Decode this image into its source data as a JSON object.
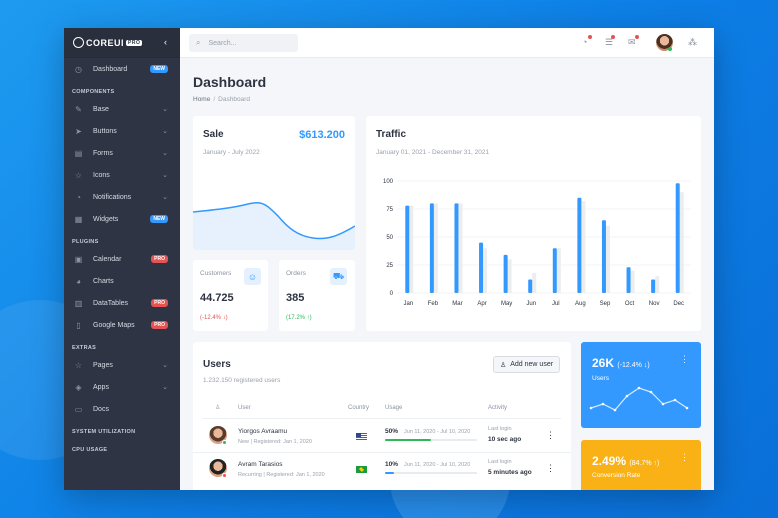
{
  "app": {
    "logo": "COREUI",
    "logo_badge": "PRO"
  },
  "sidebar": {
    "items": [
      {
        "label": "Dashboard",
        "icon": "speedometer-icon",
        "badge": "NEW",
        "badge_type": "new"
      },
      {
        "section": "COMPONENTS"
      },
      {
        "label": "Base",
        "icon": "puzzle-icon",
        "caret": true
      },
      {
        "label": "Buttons",
        "icon": "cursor-icon",
        "caret": true
      },
      {
        "label": "Forms",
        "icon": "notes-icon",
        "caret": true
      },
      {
        "label": "Icons",
        "icon": "star-icon",
        "caret": true
      },
      {
        "label": "Notifications",
        "icon": "bell-icon",
        "caret": true
      },
      {
        "label": "Widgets",
        "icon": "calculator-icon",
        "badge": "NEW",
        "badge_type": "new"
      },
      {
        "section": "PLUGINS"
      },
      {
        "label": "Calendar",
        "icon": "calendar-icon",
        "badge": "PRO",
        "badge_type": "pro"
      },
      {
        "label": "Charts",
        "icon": "chart-pie-icon"
      },
      {
        "label": "DataTables",
        "icon": "spreadsheet-icon",
        "badge": "PRO",
        "badge_type": "pro"
      },
      {
        "label": "Google Maps",
        "icon": "map-icon",
        "badge": "PRO",
        "badge_type": "pro"
      },
      {
        "section": "EXTRAS"
      },
      {
        "label": "Pages",
        "icon": "star-icon",
        "caret": true
      },
      {
        "label": "Apps",
        "icon": "layers-icon",
        "caret": true
      },
      {
        "label": "Docs",
        "icon": "description-icon"
      },
      {
        "section": "SYSTEM UTILIZATION"
      },
      {
        "section": "CPU USAGE"
      }
    ]
  },
  "topbar": {
    "search_placeholder": "Search..."
  },
  "page": {
    "title": "Dashboard",
    "breadcrumb": [
      "Home",
      "Dashboard"
    ]
  },
  "sale": {
    "title": "Sale",
    "amount": "$613.200",
    "range": "January - July 2022"
  },
  "traffic": {
    "title": "Traffic",
    "range": "January 01, 2021 - December 31, 2021"
  },
  "customers": {
    "label": "Customers",
    "value": "44.725",
    "change": "(-12.4% ↓)",
    "change_color": "#e55353"
  },
  "orders": {
    "label": "Orders",
    "value": "385",
    "change": "(17.2% ↑)",
    "change_color": "#2eb85c"
  },
  "chart_data": {
    "type": "bar",
    "categories": [
      "Jan",
      "Feb",
      "Mar",
      "Apr",
      "May",
      "Jun",
      "Jul",
      "Aug",
      "Sep",
      "Oct",
      "Nov",
      "Dec"
    ],
    "series": [
      {
        "values": [
          78,
          80,
          80,
          45,
          34,
          12,
          40,
          85,
          65,
          23,
          12,
          98
        ],
        "color": "#3399ff"
      },
      {
        "values": [
          78,
          80,
          80,
          40,
          30,
          18,
          40,
          82,
          60,
          20,
          15,
          90
        ],
        "color": "#ebedef"
      }
    ],
    "yticks": [
      0,
      25,
      50,
      75,
      100
    ],
    "ylim": [
      0,
      100
    ]
  },
  "users": {
    "title": "Users",
    "subtitle": "1.232.150 registered users",
    "add_button": "Add new user",
    "columns": {
      "user": "User",
      "country": "Country",
      "usage": "Usage",
      "activity": "Activity"
    },
    "rows": [
      {
        "name": "Yiorgos Avraamu",
        "meta": "New | Registered: Jan 1, 2020",
        "flag": "us",
        "usage": "50%",
        "usage_value": 50,
        "usage_color": "#2eb85c",
        "range": "Jun 11, 2020 - Jul 10, 2020",
        "last_login_label": "Last login",
        "last_login": "10 sec ago",
        "status_color": "#2eb85c"
      },
      {
        "name": "Avram Tarasios",
        "meta": "Recurring | Registered: Jan 1, 2020",
        "flag": "br",
        "usage": "10%",
        "usage_value": 10,
        "usage_color": "#3399ff",
        "range": "Jun 11, 2020 - Jul 10, 2020",
        "last_login_label": "Last login",
        "last_login": "5 minutes ago",
        "status_color": "#e55353"
      }
    ]
  },
  "widget_users": {
    "value": "26K",
    "change": "(-12.4% ↓)",
    "label": "Users",
    "color": "#3399ff"
  },
  "widget_conv": {
    "value": "2.49%",
    "change": "(84.7% ↑)",
    "label": "Conversion Rate",
    "color": "#f9b115"
  }
}
